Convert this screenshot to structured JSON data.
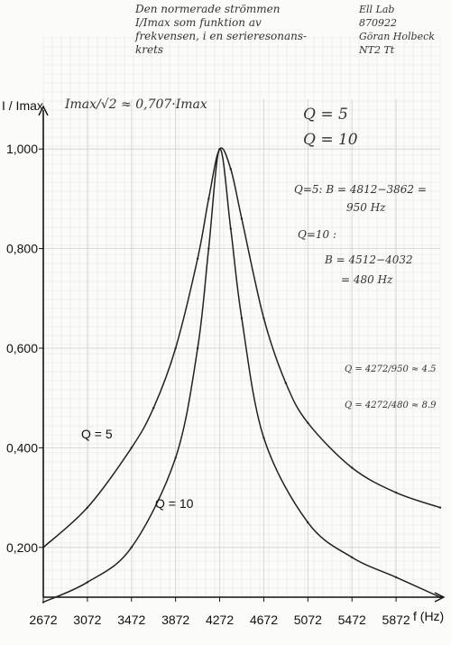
{
  "header": {
    "title_lines": [
      "Den normerade strömmen",
      "I/Imax som funktion av",
      "frekvensen, i en serieresonans-",
      "krets"
    ],
    "info_lines": [
      "Ell Lab",
      "870922",
      "Göran Holbeck",
      "NT2 Tt"
    ]
  },
  "notes": {
    "formula": "Imax/√2 ≈ 0,707·Imax",
    "q_legend": [
      "Q = 5",
      "Q = 10"
    ],
    "calc_q5": [
      "Q=5:  B = 4812−3862 =",
      "950 Hz"
    ],
    "calc_q10": [
      "Q=10 :",
      "B = 4512−4032",
      "= 480 Hz"
    ],
    "check_q5": "Q = 4272/950 ≈ 4.5",
    "check_q10": "Q = 4272/480 ≈ 8.9"
  },
  "chart_data": {
    "type": "line",
    "title": "",
    "xlabel": "f (Hz)",
    "ylabel": "I / Imax",
    "xlim": [
      2672,
      6272
    ],
    "ylim": [
      0.1,
      1.1
    ],
    "x_ticks": [
      2672,
      3072,
      3472,
      3872,
      4272,
      4672,
      5072,
      5472,
      5872
    ],
    "x_tick_labels": [
      "2672",
      "3072",
      "3472",
      "3872",
      "4272",
      "4672",
      "5072",
      "5472",
      "5872"
    ],
    "y_ticks": [
      0.2,
      0.4,
      0.6,
      0.8,
      1.0
    ],
    "y_tick_labels": [
      "0,200",
      "0,400",
      "0,600",
      "0,800",
      "1,000"
    ],
    "grid": true,
    "series": [
      {
        "name": "Q = 5",
        "color": "#222222",
        "points": [
          [
            2672,
            0.2
          ],
          [
            3072,
            0.28
          ],
          [
            3472,
            0.4
          ],
          [
            3672,
            0.48
          ],
          [
            3872,
            0.6
          ],
          [
            4072,
            0.78
          ],
          [
            4172,
            0.9
          ],
          [
            4272,
            1.0
          ],
          [
            4372,
            0.96
          ],
          [
            4472,
            0.86
          ],
          [
            4672,
            0.66
          ],
          [
            4872,
            0.53
          ],
          [
            5072,
            0.45
          ],
          [
            5472,
            0.36
          ],
          [
            5872,
            0.31
          ],
          [
            6272,
            0.28
          ]
        ]
      },
      {
        "name": "Q = 10",
        "color": "#222222",
        "points": [
          [
            2672,
            0.09
          ],
          [
            3072,
            0.13
          ],
          [
            3472,
            0.2
          ],
          [
            3872,
            0.38
          ],
          [
            4072,
            0.6
          ],
          [
            4172,
            0.8
          ],
          [
            4272,
            1.0
          ],
          [
            4372,
            0.84
          ],
          [
            4472,
            0.66
          ],
          [
            4672,
            0.42
          ],
          [
            5072,
            0.25
          ],
          [
            5472,
            0.18
          ],
          [
            5872,
            0.14
          ],
          [
            6272,
            0.1
          ]
        ]
      }
    ]
  }
}
